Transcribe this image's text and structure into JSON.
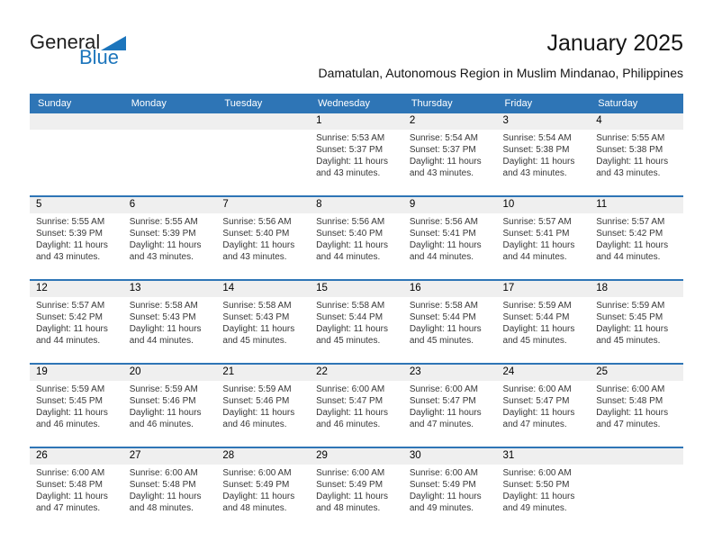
{
  "logo": {
    "part1": "General",
    "part2": "Blue"
  },
  "title": "January 2025",
  "location": "Damatulan, Autonomous Region in Muslim Mindanao, Philippines",
  "weekdays": [
    "Sunday",
    "Monday",
    "Tuesday",
    "Wednesday",
    "Thursday",
    "Friday",
    "Saturday"
  ],
  "colors": {
    "header_blue": "#2E75B6",
    "week_separator_blue": "#2E75B6",
    "day_band_gray": "#EFEFEF",
    "logo_blue": "#1C75BC"
  },
  "weeks": [
    [
      null,
      null,
      null,
      {
        "day": "1",
        "sunrise": "Sunrise: 5:53 AM",
        "sunset": "Sunset: 5:37 PM",
        "daylight": "Daylight: 11 hours and 43 minutes."
      },
      {
        "day": "2",
        "sunrise": "Sunrise: 5:54 AM",
        "sunset": "Sunset: 5:37 PM",
        "daylight": "Daylight: 11 hours and 43 minutes."
      },
      {
        "day": "3",
        "sunrise": "Sunrise: 5:54 AM",
        "sunset": "Sunset: 5:38 PM",
        "daylight": "Daylight: 11 hours and 43 minutes."
      },
      {
        "day": "4",
        "sunrise": "Sunrise: 5:55 AM",
        "sunset": "Sunset: 5:38 PM",
        "daylight": "Daylight: 11 hours and 43 minutes."
      }
    ],
    [
      {
        "day": "5",
        "sunrise": "Sunrise: 5:55 AM",
        "sunset": "Sunset: 5:39 PM",
        "daylight": "Daylight: 11 hours and 43 minutes."
      },
      {
        "day": "6",
        "sunrise": "Sunrise: 5:55 AM",
        "sunset": "Sunset: 5:39 PM",
        "daylight": "Daylight: 11 hours and 43 minutes."
      },
      {
        "day": "7",
        "sunrise": "Sunrise: 5:56 AM",
        "sunset": "Sunset: 5:40 PM",
        "daylight": "Daylight: 11 hours and 43 minutes."
      },
      {
        "day": "8",
        "sunrise": "Sunrise: 5:56 AM",
        "sunset": "Sunset: 5:40 PM",
        "daylight": "Daylight: 11 hours and 44 minutes."
      },
      {
        "day": "9",
        "sunrise": "Sunrise: 5:56 AM",
        "sunset": "Sunset: 5:41 PM",
        "daylight": "Daylight: 11 hours and 44 minutes."
      },
      {
        "day": "10",
        "sunrise": "Sunrise: 5:57 AM",
        "sunset": "Sunset: 5:41 PM",
        "daylight": "Daylight: 11 hours and 44 minutes."
      },
      {
        "day": "11",
        "sunrise": "Sunrise: 5:57 AM",
        "sunset": "Sunset: 5:42 PM",
        "daylight": "Daylight: 11 hours and 44 minutes."
      }
    ],
    [
      {
        "day": "12",
        "sunrise": "Sunrise: 5:57 AM",
        "sunset": "Sunset: 5:42 PM",
        "daylight": "Daylight: 11 hours and 44 minutes."
      },
      {
        "day": "13",
        "sunrise": "Sunrise: 5:58 AM",
        "sunset": "Sunset: 5:43 PM",
        "daylight": "Daylight: 11 hours and 44 minutes."
      },
      {
        "day": "14",
        "sunrise": "Sunrise: 5:58 AM",
        "sunset": "Sunset: 5:43 PM",
        "daylight": "Daylight: 11 hours and 45 minutes."
      },
      {
        "day": "15",
        "sunrise": "Sunrise: 5:58 AM",
        "sunset": "Sunset: 5:44 PM",
        "daylight": "Daylight: 11 hours and 45 minutes."
      },
      {
        "day": "16",
        "sunrise": "Sunrise: 5:58 AM",
        "sunset": "Sunset: 5:44 PM",
        "daylight": "Daylight: 11 hours and 45 minutes."
      },
      {
        "day": "17",
        "sunrise": "Sunrise: 5:59 AM",
        "sunset": "Sunset: 5:44 PM",
        "daylight": "Daylight: 11 hours and 45 minutes."
      },
      {
        "day": "18",
        "sunrise": "Sunrise: 5:59 AM",
        "sunset": "Sunset: 5:45 PM",
        "daylight": "Daylight: 11 hours and 45 minutes."
      }
    ],
    [
      {
        "day": "19",
        "sunrise": "Sunrise: 5:59 AM",
        "sunset": "Sunset: 5:45 PM",
        "daylight": "Daylight: 11 hours and 46 minutes."
      },
      {
        "day": "20",
        "sunrise": "Sunrise: 5:59 AM",
        "sunset": "Sunset: 5:46 PM",
        "daylight": "Daylight: 11 hours and 46 minutes."
      },
      {
        "day": "21",
        "sunrise": "Sunrise: 5:59 AM",
        "sunset": "Sunset: 5:46 PM",
        "daylight": "Daylight: 11 hours and 46 minutes."
      },
      {
        "day": "22",
        "sunrise": "Sunrise: 6:00 AM",
        "sunset": "Sunset: 5:47 PM",
        "daylight": "Daylight: 11 hours and 46 minutes."
      },
      {
        "day": "23",
        "sunrise": "Sunrise: 6:00 AM",
        "sunset": "Sunset: 5:47 PM",
        "daylight": "Daylight: 11 hours and 47 minutes."
      },
      {
        "day": "24",
        "sunrise": "Sunrise: 6:00 AM",
        "sunset": "Sunset: 5:47 PM",
        "daylight": "Daylight: 11 hours and 47 minutes."
      },
      {
        "day": "25",
        "sunrise": "Sunrise: 6:00 AM",
        "sunset": "Sunset: 5:48 PM",
        "daylight": "Daylight: 11 hours and 47 minutes."
      }
    ],
    [
      {
        "day": "26",
        "sunrise": "Sunrise: 6:00 AM",
        "sunset": "Sunset: 5:48 PM",
        "daylight": "Daylight: 11 hours and 47 minutes."
      },
      {
        "day": "27",
        "sunrise": "Sunrise: 6:00 AM",
        "sunset": "Sunset: 5:48 PM",
        "daylight": "Daylight: 11 hours and 48 minutes."
      },
      {
        "day": "28",
        "sunrise": "Sunrise: 6:00 AM",
        "sunset": "Sunset: 5:49 PM",
        "daylight": "Daylight: 11 hours and 48 minutes."
      },
      {
        "day": "29",
        "sunrise": "Sunrise: 6:00 AM",
        "sunset": "Sunset: 5:49 PM",
        "daylight": "Daylight: 11 hours and 48 minutes."
      },
      {
        "day": "30",
        "sunrise": "Sunrise: 6:00 AM",
        "sunset": "Sunset: 5:49 PM",
        "daylight": "Daylight: 11 hours and 49 minutes."
      },
      {
        "day": "31",
        "sunrise": "Sunrise: 6:00 AM",
        "sunset": "Sunset: 5:50 PM",
        "daylight": "Daylight: 11 hours and 49 minutes."
      },
      null
    ]
  ]
}
